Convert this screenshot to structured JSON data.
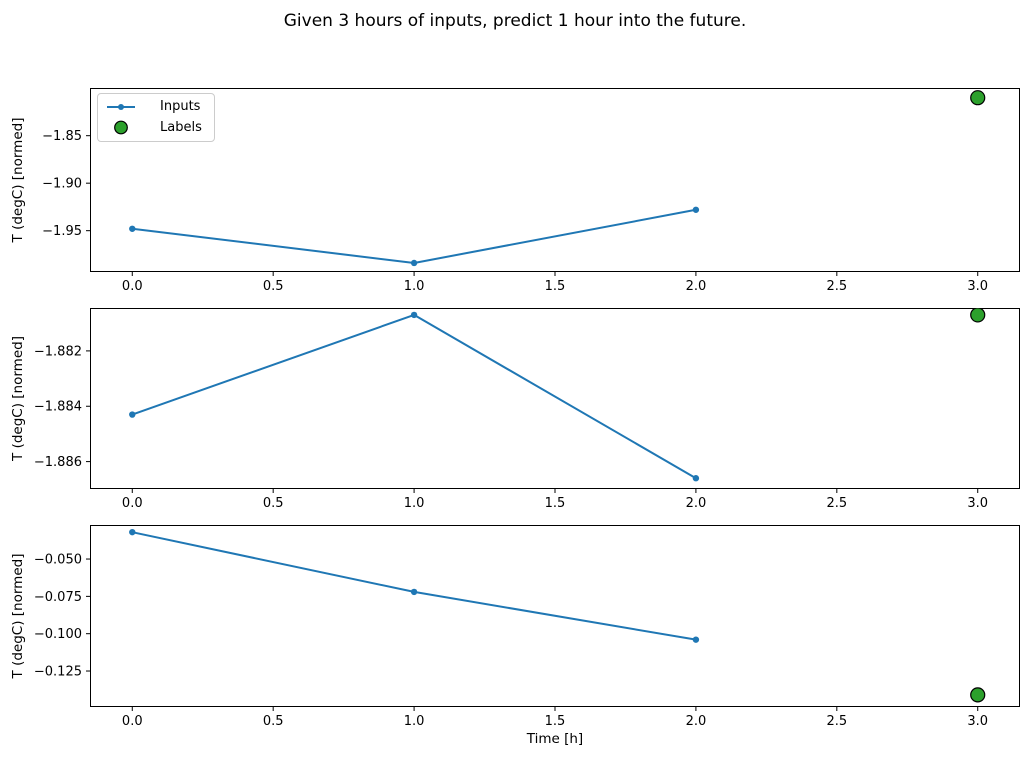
{
  "figure": {
    "title": "Given 3 hours of inputs, predict 1 hour into the future.",
    "xlabel": "Time [h]",
    "background": "#ffffff",
    "spine_color": "#000000",
    "tick_color": "#000000"
  },
  "legend": {
    "items": [
      {
        "label": "Inputs",
        "kind": "line-marker",
        "color": "#1f77b4"
      },
      {
        "label": "Labels",
        "kind": "scatter",
        "color": "#2ca02c",
        "edge": "#000000"
      }
    ]
  },
  "chart_data": [
    {
      "type": "line",
      "ylabel": "T (degC) [normed]",
      "xlim": [
        -0.15,
        3.15
      ],
      "ylim": [
        -1.9935,
        -1.7998
      ],
      "grid": false,
      "legend_position": "upper-left",
      "xticks": {
        "values": [
          0,
          0.5,
          1,
          1.5,
          2,
          2.5,
          3
        ],
        "labels": [
          "0.0",
          "0.5",
          "1.0",
          "1.5",
          "2.0",
          "2.5",
          "3.0"
        ]
      },
      "yticks": {
        "values": [
          -1.85,
          -1.9,
          -1.95
        ],
        "labels": [
          "−1.85",
          "−1.90",
          "−1.95"
        ]
      },
      "series": [
        {
          "name": "Inputs",
          "kind": "line-marker",
          "color": "#1f77b4",
          "x": [
            0,
            1,
            2
          ],
          "y": [
            -1.948,
            -1.984,
            -1.928
          ]
        },
        {
          "name": "Labels",
          "kind": "scatter",
          "color": "#2ca02c",
          "edge": "#000000",
          "x": [
            3
          ],
          "y": [
            -1.81
          ]
        }
      ]
    },
    {
      "type": "line",
      "ylabel": "T (degC) [normed]",
      "xlim": [
        -0.15,
        3.15
      ],
      "ylim": [
        -1.88699,
        -1.88045
      ],
      "grid": false,
      "xticks": {
        "values": [
          0,
          0.5,
          1,
          1.5,
          2,
          2.5,
          3
        ],
        "labels": [
          "0.0",
          "0.5",
          "1.0",
          "1.5",
          "2.0",
          "2.5",
          "3.0"
        ]
      },
      "yticks": {
        "values": [
          -1.882,
          -1.884,
          -1.886
        ],
        "labels": [
          "−1.882",
          "−1.884",
          "−1.886"
        ]
      },
      "series": [
        {
          "name": "Inputs",
          "kind": "line-marker",
          "color": "#1f77b4",
          "x": [
            0,
            1,
            2
          ],
          "y": [
            -1.8843,
            -1.8807,
            -1.8866
          ]
        },
        {
          "name": "Labels",
          "kind": "scatter",
          "color": "#2ca02c",
          "edge": "#000000",
          "x": [
            3
          ],
          "y": [
            -1.8807
          ]
        }
      ]
    },
    {
      "type": "line",
      "ylabel": "T (degC) [normed]",
      "xlim": [
        -0.15,
        3.15
      ],
      "ylim": [
        -0.1491,
        -0.0272
      ],
      "grid": false,
      "xticks": {
        "values": [
          0,
          0.5,
          1,
          1.5,
          2,
          2.5,
          3
        ],
        "labels": [
          "0.0",
          "0.5",
          "1.0",
          "1.5",
          "2.0",
          "2.5",
          "3.0"
        ]
      },
      "yticks": {
        "values": [
          -0.05,
          -0.075,
          -0.1,
          -0.125
        ],
        "labels": [
          "−0.050",
          "−0.075",
          "−0.100",
          "−0.125"
        ]
      },
      "series": [
        {
          "name": "Inputs",
          "kind": "line-marker",
          "color": "#1f77b4",
          "x": [
            0,
            1,
            2
          ],
          "y": [
            -0.032,
            -0.072,
            -0.104
          ]
        },
        {
          "name": "Labels",
          "kind": "scatter",
          "color": "#2ca02c",
          "edge": "#000000",
          "x": [
            3
          ],
          "y": [
            -0.141
          ]
        }
      ]
    }
  ]
}
